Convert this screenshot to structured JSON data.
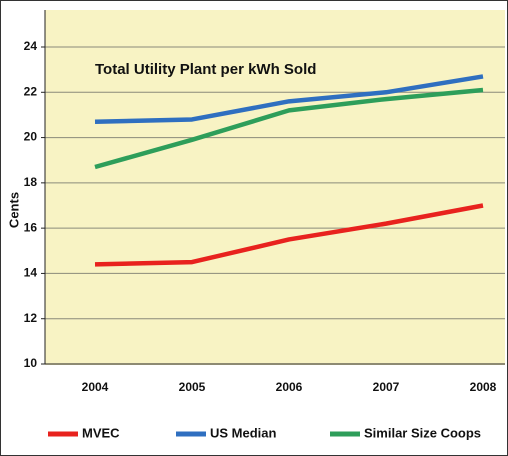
{
  "chart_data": {
    "type": "line",
    "title": "Total Utility Plant per kWh Sold",
    "ylabel": "Cents",
    "categories": [
      "2004",
      "2005",
      "2006",
      "2007",
      "2008"
    ],
    "series": [
      {
        "name": "MVEC",
        "color": "#e8221e",
        "values": [
          14.4,
          14.5,
          15.5,
          16.2,
          17.0
        ]
      },
      {
        "name": "US Median",
        "color": "#2f6fc0",
        "values": [
          20.7,
          20.8,
          21.6,
          22.0,
          22.7
        ]
      },
      {
        "name": "Similar Size Coops",
        "color": "#2e9e5a",
        "values": [
          18.7,
          19.9,
          21.2,
          21.7,
          22.1
        ]
      }
    ],
    "ylim": [
      10,
      24
    ],
    "yticks": [
      10,
      12,
      14,
      16,
      18,
      20,
      22,
      24
    ],
    "grid": true
  }
}
